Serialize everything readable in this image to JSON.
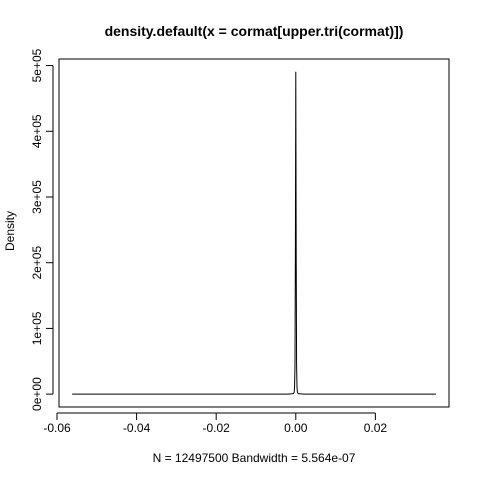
{
  "chart_data": {
    "type": "line",
    "title": "density.default(x = cormat[upper.tri(cormat)])",
    "xlabel": "N = 12497500   Bandwidth = 5.564e-07",
    "ylabel": "Density",
    "xlim": [
      -0.0595,
      0.0385
    ],
    "ylim": [
      -19600,
      510000
    ],
    "x_ticks": [
      -0.06,
      -0.04,
      -0.02,
      0.0,
      0.02
    ],
    "x_tick_labels": [
      "-0.06",
      "-0.04",
      "-0.02",
      "0.00",
      "0.02"
    ],
    "y_ticks": [
      0,
      100000,
      200000,
      300000,
      400000,
      500000
    ],
    "y_tick_labels": [
      "0e+00",
      "1e+05",
      "2e+05",
      "3e+05",
      "4e+05",
      "5e+05"
    ],
    "grid": false,
    "legend": "none",
    "series": [
      {
        "color": "#000000",
        "x": [
          -0.0562,
          -0.002,
          -0.0006,
          -0.0004,
          -0.0003,
          -0.0002,
          -0.0001,
          0.0,
          0.0001,
          0.0002,
          0.0003,
          0.0004,
          0.0006,
          0.002,
          0.0352
        ],
        "y": [
          0,
          0,
          800,
          3000,
          12000,
          45000,
          220000,
          490000,
          220000,
          45000,
          12000,
          3000,
          800,
          0,
          0
        ]
      }
    ]
  }
}
